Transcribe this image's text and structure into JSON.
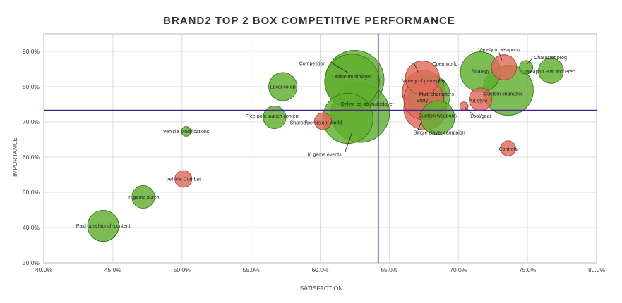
{
  "chart_data": {
    "type": "scatter",
    "title": "BRAND2 TOP 2 BOX COMPETITIVE PERFORMANCE",
    "xlabel": "SATISFACTION",
    "ylabel": "IMPORTANCE",
    "xlim": [
      40,
      80
    ],
    "ylim": [
      30,
      95
    ],
    "x_ticks": [
      "40.0%",
      "45.0%",
      "50.0%",
      "55.0%",
      "60.0%",
      "65.0%",
      "70.0%",
      "75.0%",
      "80.0%"
    ],
    "y_ticks": [
      "30.0%",
      "40.0%",
      "50.0%",
      "60.0%",
      "70.0%",
      "80.0%",
      "90.0%"
    ],
    "reference_lines": {
      "x": 64.2,
      "y": 73.3
    },
    "grid": true,
    "colors": {
      "green": "#5faf2f",
      "red": "#e06b5c",
      "reference_line": "#4b1f8f"
    },
    "points": [
      {
        "label": "Paid post launch content",
        "x": 44.3,
        "y": 40.5,
        "size": 8.5,
        "color": "green"
      },
      {
        "label": "In-game purch",
        "x": 47.2,
        "y": 48.7,
        "size": 4.5,
        "color": "green"
      },
      {
        "label": "Vehicle Combat",
        "x": 50.1,
        "y": 53.8,
        "size": 2.5,
        "color": "red"
      },
      {
        "label": "Vehicle Modifications",
        "x": 50.3,
        "y": 67.3,
        "size": 0.8,
        "color": "green"
      },
      {
        "label": "Local co-op",
        "x": 57.3,
        "y": 80.0,
        "size": 7,
        "color": "green"
      },
      {
        "label": "Free post launch content",
        "x": 56.7,
        "y": 71.3,
        "size": 4.5,
        "color": "green"
      },
      {
        "label": "Shared/persistent world",
        "x": 60.2,
        "y": 70.2,
        "size": 2.5,
        "color": "red"
      },
      {
        "label": "Competition",
        "x": 62.5,
        "y": 82.0,
        "size": 30,
        "color": "green"
      },
      {
        "label": "Online multiplayer",
        "x": 62.3,
        "y": 81.5,
        "size": 26,
        "color": "green"
      },
      {
        "label": "Online co-op multiplayer",
        "x": 62.9,
        "y": 72.5,
        "size": 30,
        "color": "green"
      },
      {
        "label": "In game events",
        "x": 62.0,
        "y": 71.0,
        "size": 22,
        "color": "green"
      },
      {
        "label": "Open world",
        "x": 67.4,
        "y": 82.5,
        "size": 10,
        "color": "red"
      },
      {
        "label": "Variety of gameplay",
        "x": 67.5,
        "y": 78.5,
        "size": 16,
        "color": "red"
      },
      {
        "label": "Multi characters",
        "x": 67.9,
        "y": 77.5,
        "size": 15,
        "color": "green"
      },
      {
        "label": "Story",
        "x": 67.5,
        "y": 76.3,
        "size": 14,
        "color": "red"
      },
      {
        "label": "Single player campaign",
        "x": 67.6,
        "y": 73.8,
        "size": 16,
        "color": "red"
      },
      {
        "label": "Custom weapons",
        "x": 68.5,
        "y": 71.2,
        "size": 10,
        "color": "green"
      },
      {
        "label": "Loot/gear",
        "x": 70.4,
        "y": 74.5,
        "size": 0.6,
        "color": "red"
      },
      {
        "label": "Strategy",
        "x": 71.6,
        "y": 84.2,
        "size": 14,
        "color": "green"
      },
      {
        "label": "Art style",
        "x": 71.6,
        "y": 76.4,
        "size": 4.5,
        "color": "red"
      },
      {
        "label": "Variety of weapons",
        "x": 73.3,
        "y": 85.5,
        "size": 5.5,
        "color": "red"
      },
      {
        "label": "Custom character",
        "x": 73.6,
        "y": 79.0,
        "size": 22,
        "color": "green"
      },
      {
        "label": "Character prog",
        "x": 74.9,
        "y": 85.5,
        "size": 1.6,
        "color": "green"
      },
      {
        "label": "Weapon Pwr and Prec",
        "x": 76.7,
        "y": 84.5,
        "size": 5.5,
        "color": "green"
      },
      {
        "label": "Controls",
        "x": 73.6,
        "y": 62.5,
        "size": 2,
        "color": "red"
      }
    ]
  }
}
